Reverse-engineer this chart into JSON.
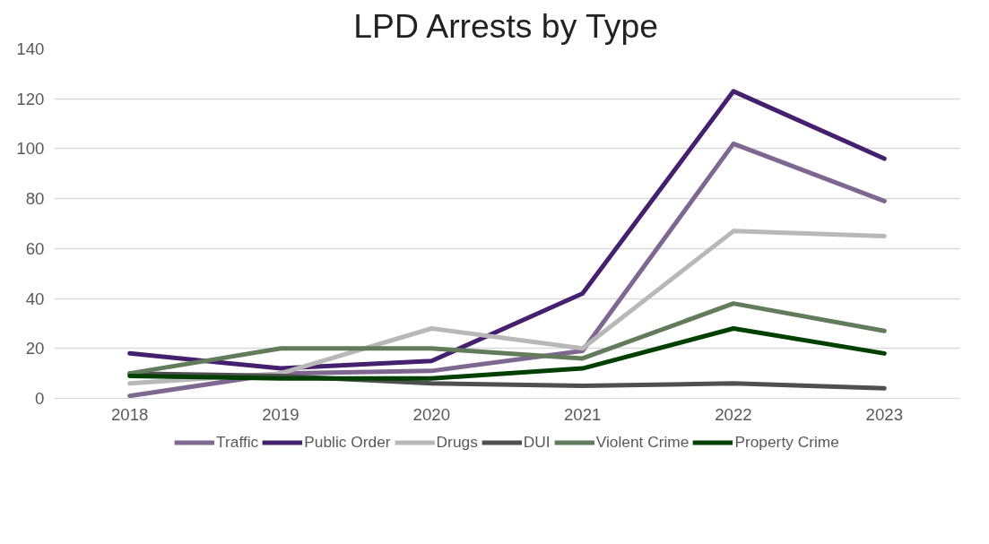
{
  "chart_data": {
    "type": "line",
    "title": "LPD Arrests by Type",
    "categories": [
      "2018",
      "2019",
      "2020",
      "2021",
      "2022",
      "2023"
    ],
    "series": [
      {
        "name": "Traffic",
        "color": "#7e6790",
        "values": [
          1,
          10,
          11,
          19,
          102,
          79
        ]
      },
      {
        "name": "Public Order",
        "color": "#44206e",
        "values": [
          18,
          12,
          15,
          42,
          123,
          96
        ]
      },
      {
        "name": "Drugs",
        "color": "#b8b8b8",
        "values": [
          6,
          10,
          28,
          20,
          67,
          65
        ]
      },
      {
        "name": "DUI",
        "color": "#4f4f4f",
        "values": [
          10,
          9,
          6,
          5,
          6,
          4
        ]
      },
      {
        "name": "Violent Crime",
        "color": "#617b5b",
        "values": [
          10,
          20,
          20,
          16,
          38,
          27
        ]
      },
      {
        "name": "Property Crime",
        "color": "#014001",
        "values": [
          9,
          8,
          8,
          12,
          28,
          18
        ]
      }
    ],
    "ylim": [
      0,
      140
    ],
    "yticks": [
      0,
      20,
      40,
      60,
      80,
      100,
      120,
      140
    ],
    "grid": "y",
    "legend": "bottom",
    "marker": "none",
    "line_style": "solid"
  }
}
